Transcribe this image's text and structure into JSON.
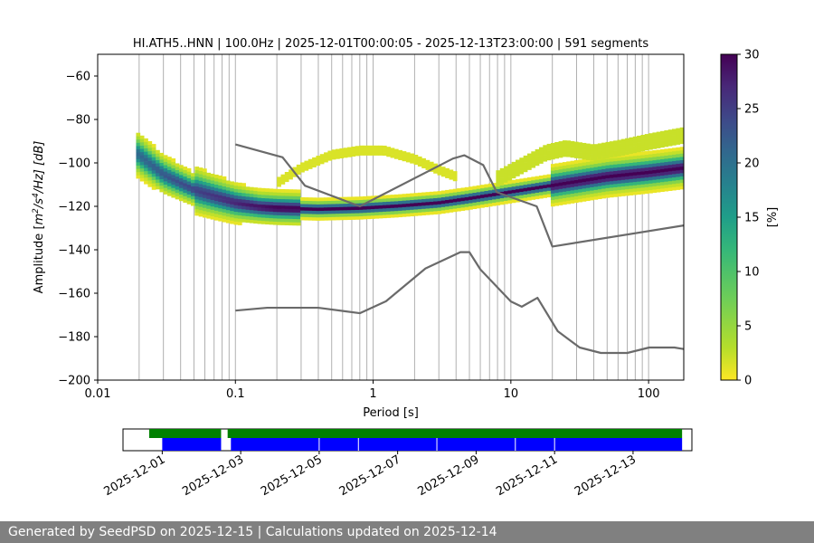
{
  "chart_data": {
    "type": "heatmap",
    "title": "HI.ATH5..HNN | 100.0Hz | 2025-12-01T00:00:05 - 2025-12-13T23:00:00 | 591 segments",
    "xlabel": "Period [s]",
    "ylabel_parts": {
      "pre": "Amplitude [",
      "m": "m",
      "e2": "2",
      "slash": "/s",
      "e4": "4",
      "post": "/Hz] [dB]"
    },
    "x_scale": "log",
    "xlim": [
      0.01,
      180
    ],
    "ylim": [
      -200,
      -50
    ],
    "x_ticks": [
      {
        "v": 0.01,
        "label": "0.01"
      },
      {
        "v": 0.1,
        "label": "0.1"
      },
      {
        "v": 1,
        "label": "1"
      },
      {
        "v": 10,
        "label": "10"
      },
      {
        "v": 100,
        "label": "100"
      }
    ],
    "y_ticks": [
      {
        "v": -60,
        "label": "−60"
      },
      {
        "v": -80,
        "label": "−80"
      },
      {
        "v": -100,
        "label": "−100"
      },
      {
        "v": -120,
        "label": "−120"
      },
      {
        "v": -140,
        "label": "−140"
      },
      {
        "v": -160,
        "label": "−160"
      },
      {
        "v": -180,
        "label": "−180"
      },
      {
        "v": -200,
        "label": "−200"
      }
    ],
    "period_gridlines": [
      0.02,
      0.03,
      0.04,
      0.05,
      0.06,
      0.07,
      0.08,
      0.09,
      0.1,
      0.2,
      0.3,
      0.4,
      0.5,
      0.6,
      0.7,
      0.8,
      0.9,
      1,
      2,
      3,
      4,
      5,
      6,
      7,
      8,
      9,
      10,
      20,
      30,
      40,
      50,
      60,
      70,
      80,
      90,
      100
    ],
    "nhnm": [
      [
        0.1,
        -91.5
      ],
      [
        0.22,
        -97.4
      ],
      [
        0.32,
        -110.5
      ],
      [
        0.8,
        -120
      ],
      [
        3.8,
        -98
      ],
      [
        4.6,
        -96.5
      ],
      [
        6.3,
        -101
      ],
      [
        7.9,
        -113.5
      ],
      [
        15.4,
        -120
      ],
      [
        20,
        -138.5
      ],
      [
        180,
        -128.8
      ]
    ],
    "nlnm": [
      [
        0.1,
        -168
      ],
      [
        0.17,
        -166.7
      ],
      [
        0.4,
        -166.7
      ],
      [
        0.8,
        -169.2
      ],
      [
        1.24,
        -163.7
      ],
      [
        2.4,
        -148.6
      ],
      [
        4.3,
        -141.1
      ],
      [
        5,
        -141.1
      ],
      [
        6,
        -149
      ],
      [
        10,
        -163.8
      ],
      [
        12,
        -166.2
      ],
      [
        15.6,
        -162.1
      ],
      [
        21.9,
        -177.5
      ],
      [
        31.6,
        -185
      ],
      [
        45,
        -187.5
      ],
      [
        70,
        -187.5
      ],
      [
        101,
        -185
      ],
      [
        154,
        -185
      ],
      [
        180,
        -185.7
      ]
    ],
    "psd_mode": [
      [
        0.019,
        -96
      ],
      [
        0.025,
        -102
      ],
      [
        0.03,
        -106
      ],
      [
        0.04,
        -110
      ],
      [
        0.05,
        -113
      ],
      [
        0.07,
        -116
      ],
      [
        0.1,
        -119
      ],
      [
        0.15,
        -121
      ],
      [
        0.2,
        -121.5
      ],
      [
        0.4,
        -122
      ],
      [
        0.8,
        -121.5
      ],
      [
        1.5,
        -120.5
      ],
      [
        3,
        -119
      ],
      [
        5,
        -117
      ],
      [
        10,
        -114
      ],
      [
        20,
        -111
      ],
      [
        50,
        -107
      ],
      [
        100,
        -105
      ],
      [
        180,
        -103
      ]
    ],
    "psd_secondary": [
      [
        0.2,
        -110
      ],
      [
        0.3,
        -103
      ],
      [
        0.5,
        -97
      ],
      [
        0.8,
        -95
      ],
      [
        1.2,
        -95
      ],
      [
        2,
        -99
      ],
      [
        3,
        -104
      ],
      [
        4,
        -107
      ]
    ],
    "psd_upper": [
      [
        8,
        -108
      ],
      [
        12,
        -102
      ],
      [
        18,
        -96
      ],
      [
        25,
        -94
      ],
      [
        40,
        -96
      ],
      [
        60,
        -94
      ],
      [
        100,
        -91
      ],
      [
        180,
        -88
      ]
    ],
    "colorbar": {
      "label": "[%]",
      "min": 0,
      "max": 30,
      "ticks": [
        {
          "v": 0,
          "label": "0"
        },
        {
          "v": 5,
          "label": "5"
        },
        {
          "v": 10,
          "label": "10"
        },
        {
          "v": 15,
          "label": "15"
        },
        {
          "v": 20,
          "label": "20"
        },
        {
          "v": 25,
          "label": "25"
        },
        {
          "v": 30,
          "label": "30"
        }
      ]
    },
    "timeline": {
      "start": "2025-11-30T00:00:00",
      "end": "2025-12-14T12:00:00",
      "date_ticks": [
        {
          "v": "2025-12-01",
          "label": "2025-12-01"
        },
        {
          "v": "2025-12-03",
          "label": "2025-12-03"
        },
        {
          "v": "2025-12-05",
          "label": "2025-12-05"
        },
        {
          "v": "2025-12-07",
          "label": "2025-12-07"
        },
        {
          "v": "2025-12-09",
          "label": "2025-12-09"
        },
        {
          "v": "2025-12-11",
          "label": "2025-12-11"
        },
        {
          "v": "2025-12-13",
          "label": "2025-12-13"
        }
      ],
      "green_spans": [
        [
          "2025-11-30T16:00:00",
          "2025-12-02T12:00:00"
        ],
        [
          "2025-12-02T16:00:00",
          "2025-12-14T06:00:00"
        ]
      ],
      "blue_spans": [
        [
          "2025-12-01T00:00:00",
          "2025-12-02T12:00:00"
        ],
        [
          "2025-12-02T18:00:00",
          "2025-12-14T06:00:00"
        ]
      ],
      "blue_gaps": [
        "2025-12-05T00:00:00",
        "2025-12-06T00:00:00",
        "2025-12-08T00:00:00",
        "2025-12-10T00:00:00",
        "2025-12-11T00:00:00"
      ],
      "green_color": "#008000",
      "blue_color": "#0000ff"
    }
  },
  "footer": {
    "text": "Generated by SeedPSD on 2025-12-15 | Calculations updated on 2025-12-14"
  },
  "colors": {
    "model_line": "#6a6a6a",
    "grid": "#b0b0b0"
  }
}
